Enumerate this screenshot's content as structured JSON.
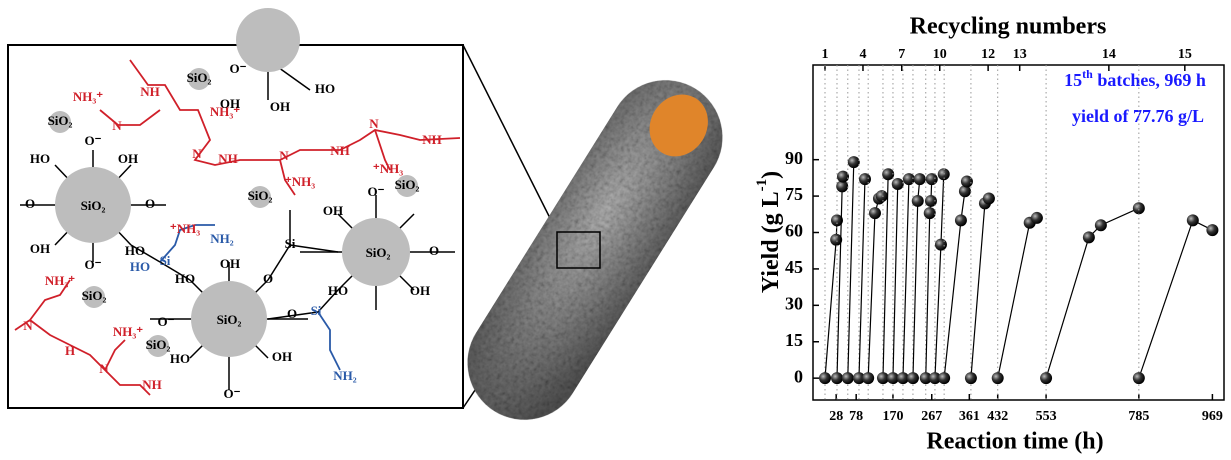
{
  "diagram": {
    "labels": [
      "SiO₂",
      "SiO₂",
      "SiO₂",
      "SiO₂",
      "SiO₂",
      "SiO₂",
      "SiO₂",
      "SiO₂",
      "SiO₂",
      "NH₃⁺",
      "NH",
      "N",
      "NH₃⁺",
      "NH",
      "N",
      "N",
      "NH",
      "NH",
      "N",
      "⁺NH₃",
      "⁺NH₃",
      "⁺NH₃",
      "NH₂",
      "HO",
      "Si",
      "Si",
      "Si",
      "NH₂",
      "NH₃⁺",
      "N",
      "H",
      "N",
      "NH₃⁺",
      "NH",
      "OH",
      "HO",
      "OH",
      "HO",
      "O⁻",
      "O⁻",
      "OH",
      "HO",
      "OH",
      "O⁻",
      "O",
      "O",
      "O⁻",
      "HO",
      "OH",
      "OH",
      "HO",
      "O",
      "O",
      "O⁻",
      "OH",
      "HO",
      "OH",
      "O",
      "O⁻"
    ]
  },
  "chart_data": {
    "type": "line",
    "title": "Recycling numbers",
    "xlabel": "Reaction time (h)",
    "ylabel": {
      "text": "Yield (g L",
      "sup": "-1",
      "end": ")"
    },
    "annotation": {
      "lead": "15",
      "sup": "th",
      "rest": " batches, 969 h",
      "line2": "yield of 77.76 g/L"
    },
    "color": "#000000",
    "annotation_color": "#1a1aff",
    "xlim": [
      -30,
      998
    ],
    "ylim": [
      -9,
      129
    ],
    "xticks": [
      28,
      78,
      170,
      267,
      361,
      432,
      553,
      785,
      969
    ],
    "yticks": [
      0,
      15,
      30,
      45,
      60,
      75,
      90
    ],
    "top_ticks": [
      {
        "value": 0,
        "label": "1"
      },
      {
        "value": 95,
        "label": "4"
      },
      {
        "value": 192,
        "label": "7"
      },
      {
        "value": 287,
        "label": "10"
      },
      {
        "value": 408,
        "label": "12"
      },
      {
        "value": 487,
        "label": "13"
      },
      {
        "value": 710,
        "label": "14"
      },
      {
        "value": 900,
        "label": "15"
      }
    ],
    "series": [
      {
        "x": [
          0,
          28,
          30
        ],
        "values": [
          0,
          57,
          65
        ]
      },
      {
        "x": [
          30,
          43,
          45
        ],
        "values": [
          0,
          79,
          83
        ]
      },
      {
        "x": [
          57,
          72
        ],
        "values": [
          0,
          89
        ]
      },
      {
        "x": [
          85,
          100
        ],
        "values": [
          0,
          82
        ]
      },
      {
        "x": [
          108,
          125,
          135,
          142
        ],
        "values": [
          0,
          68,
          74,
          75
        ]
      },
      {
        "x": [
          145,
          158
        ],
        "values": [
          0,
          84
        ]
      },
      {
        "x": [
          170,
          182
        ],
        "values": [
          0,
          80
        ]
      },
      {
        "x": [
          195,
          210
        ],
        "values": [
          0,
          82
        ]
      },
      {
        "x": [
          220,
          232,
          237
        ],
        "values": [
          0,
          73,
          82
        ]
      },
      {
        "x": [
          252,
          262,
          265,
          267
        ],
        "values": [
          0,
          68,
          73,
          82
        ]
      },
      {
        "x": [
          275,
          290,
          297
        ],
        "values": [
          0,
          55,
          84
        ]
      },
      {
        "x": [
          298,
          340,
          350,
          355
        ],
        "values": [
          0,
          65,
          77,
          81
        ]
      },
      {
        "x": [
          365,
          400,
          410
        ],
        "values": [
          0,
          72,
          74
        ]
      },
      {
        "x": [
          432,
          512,
          530
        ],
        "values": [
          0,
          64,
          66
        ]
      },
      {
        "x": [
          553,
          660,
          690,
          785
        ],
        "values": [
          0,
          58,
          63,
          70
        ]
      },
      {
        "x": [
          785,
          920,
          969
        ],
        "values": [
          0,
          65,
          61
        ]
      }
    ]
  }
}
